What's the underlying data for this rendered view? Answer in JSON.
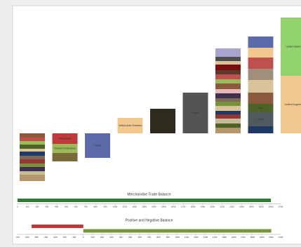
{
  "chart_data": [
    {
      "type": "stacked-columns",
      "ylim": [
        -70,
        180
      ],
      "columns": [
        {
          "segments": [
            {
              "value": -6,
              "color": "#8b5a3c"
            },
            {
              "value": -5,
              "color": "#c0504d"
            },
            {
              "value": -5,
              "color": "#9bbb59"
            },
            {
              "value": -6,
              "color": "#4f6228"
            },
            {
              "value": -4,
              "color": "#d9c39a"
            },
            {
              "value": -6,
              "color": "#1f3864"
            },
            {
              "value": -5,
              "color": "#7f6a5a"
            },
            {
              "value": -6,
              "color": "#953735"
            },
            {
              "value": -5,
              "color": "#77933c"
            },
            {
              "value": -6,
              "color": "#403151"
            },
            {
              "value": -5,
              "color": "#c4bd97"
            },
            {
              "value": -9,
              "color": "#b7956b"
            }
          ]
        },
        {
          "segments": [
            {
              "value": -15,
              "color": "#c0393b",
              "label": "Netherlands"
            },
            {
              "value": -13,
              "color": "#9bbb59",
              "label": "Russian Federation"
            },
            {
              "value": -12,
              "color": "#7a6a3a"
            }
          ]
        },
        {
          "segments": [
            {
              "value": -35,
              "color": "#5b6aa8",
              "label": "China"
            }
          ]
        },
        {
          "segments": [
            {
              "value": 22,
              "color": "#f2c88e",
              "label": "United Arab Emirates"
            }
          ]
        },
        {
          "segments": [
            {
              "value": 35,
              "color": "#2e2a1e",
              "label": "Canada"
            }
          ]
        },
        {
          "segments": [
            {
              "value": 58,
              "color": "#535552",
              "label": "France"
            }
          ]
        },
        {
          "segments": [
            {
              "value": 8,
              "color": "#b7956b"
            },
            {
              "value": 6,
              "color": "#4f6228"
            },
            {
              "value": 7,
              "color": "#c4bd97"
            },
            {
              "value": 6,
              "color": "#953735"
            },
            {
              "value": 5,
              "color": "#1f3864"
            },
            {
              "value": 7,
              "color": "#d9c39a"
            },
            {
              "value": 6,
              "color": "#77933c"
            },
            {
              "value": 5,
              "color": "#7f6a5a"
            },
            {
              "value": 7,
              "color": "#403151"
            },
            {
              "value": 6,
              "color": "#e6b9b8"
            },
            {
              "value": 8,
              "color": "#8b5a3c"
            },
            {
              "value": 6,
              "color": "#9bbb59"
            },
            {
              "value": 7,
              "color": "#c0504d"
            },
            {
              "value": 6,
              "color": "#5b3a29"
            },
            {
              "value": 8,
              "color": "#7b0f0f"
            },
            {
              "value": 5,
              "color": "#d9c39a"
            },
            {
              "value": 6,
              "color": "#4f4f4f"
            },
            {
              "value": 12,
              "color": "#a5a5d0"
            }
          ]
        },
        {
          "segments": [
            {
              "value": 10,
              "color": "#1f3864"
            },
            {
              "value": 20,
              "color": "#4e5a5e",
              "label": "Spain"
            },
            {
              "value": 12,
              "color": "#4f6228",
              "label": "Italy"
            },
            {
              "value": 16,
              "color": "#8b5a3c"
            },
            {
              "value": 18,
              "color": "#d9c39a"
            },
            {
              "value": 16,
              "color": "#a08f7a"
            },
            {
              "value": 16,
              "color": "#c0504d"
            },
            {
              "value": 14,
              "color": "#f2c88e"
            },
            {
              "value": 16,
              "color": "#5b6aa8"
            }
          ]
        },
        {
          "segments": [
            {
              "value": 82,
              "color": "#f2c88e",
              "label": "United Kingdom"
            },
            {
              "value": 83,
              "color": "#92d36e",
              "label": "United States"
            }
          ]
        }
      ]
    },
    {
      "type": "hbar",
      "title": "Merchandise Trade Balance",
      "values": [
        2600
      ],
      "color": "#2e7d32",
      "xlim": [
        0,
        2700
      ],
      "xticks": [
        0,
        100,
        200,
        300,
        400,
        500,
        600,
        700,
        800,
        900,
        1000,
        1100,
        1200,
        1300,
        1400,
        1500,
        1600,
        1700,
        1800,
        1900,
        2000,
        2100,
        2200,
        2300,
        2400,
        2500,
        2600,
        2700
      ]
    },
    {
      "type": "hbar",
      "title": "Positive and Negative Balance",
      "values": [
        -550,
        2000
      ],
      "colors": [
        "#c0393b",
        "#77933c"
      ],
      "xlim": [
        -700,
        2100
      ],
      "xticks": [
        -700,
        -600,
        -500,
        -400,
        -300,
        -200,
        -100,
        0,
        100,
        200,
        300,
        400,
        500,
        600,
        700,
        800,
        900,
        1000,
        1100,
        1200,
        1300,
        1400,
        1500,
        1600,
        1700,
        1800,
        1900,
        2000,
        2100
      ]
    }
  ]
}
